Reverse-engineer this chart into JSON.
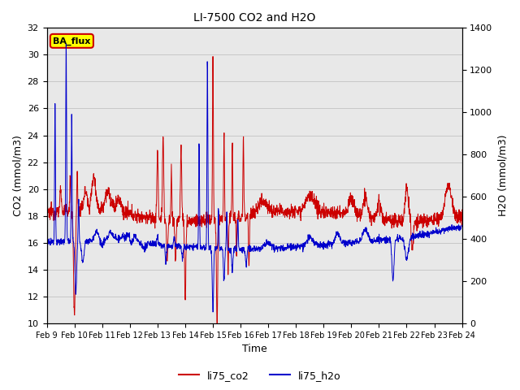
{
  "title": "LI-7500 CO2 and H2O",
  "xlabel": "Time",
  "ylabel_left": "CO2 (mmol/m3)",
  "ylabel_right": "H2O (mmol/m3)",
  "ylim_left": [
    10,
    32
  ],
  "ylim_right": [
    0,
    1400
  ],
  "yticks_left": [
    10,
    12,
    14,
    16,
    18,
    20,
    22,
    24,
    26,
    28,
    30,
    32
  ],
  "yticks_right": [
    0,
    200,
    400,
    600,
    800,
    1000,
    1200,
    1400
  ],
  "xtick_labels": [
    "Feb 9",
    "Feb 10",
    "Feb 11",
    "Feb 12",
    "Feb 13",
    "Feb 14",
    "Feb 15",
    "Feb 16",
    "Feb 17",
    "Feb 18",
    "Feb 19",
    "Feb 20",
    "Feb 21",
    "Feb 22",
    "Feb 23",
    "Feb 24"
  ],
  "color_co2": "#cc0000",
  "color_h2o": "#0000cc",
  "legend_label_co2": "li75_co2",
  "legend_label_h2o": "li75_h2o",
  "annotation_text": "BA_flux",
  "annotation_color_bg": "#ffff00",
  "annotation_color_border": "#cc0000",
  "plot_area_bg": "#e8e8e8",
  "fig_bg": "#ffffff",
  "n_points": 2000,
  "figsize": [
    6.4,
    4.8
  ],
  "dpi": 100
}
